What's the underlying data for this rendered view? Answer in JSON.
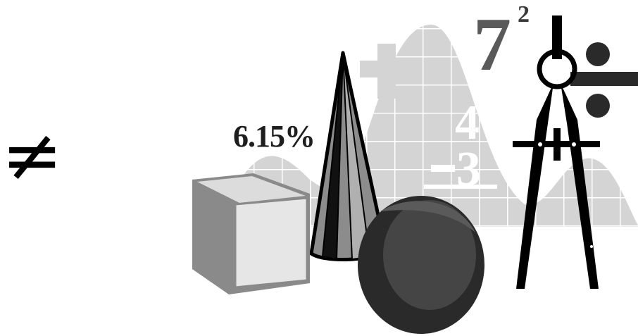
{
  "symbols": {
    "not_equal": "≠",
    "percent": "6.15%",
    "base": "7",
    "exponent": "2",
    "top_number": "4",
    "bottom_number": "3"
  },
  "colors": {
    "background": "#ffffff",
    "graph": "#d4d4d4",
    "grid": "#ffffff",
    "cube_side": "#8a8a8a",
    "cube_front": "#e6e6e6",
    "sphere": "#3a3a3a",
    "compass": "#000000"
  }
}
